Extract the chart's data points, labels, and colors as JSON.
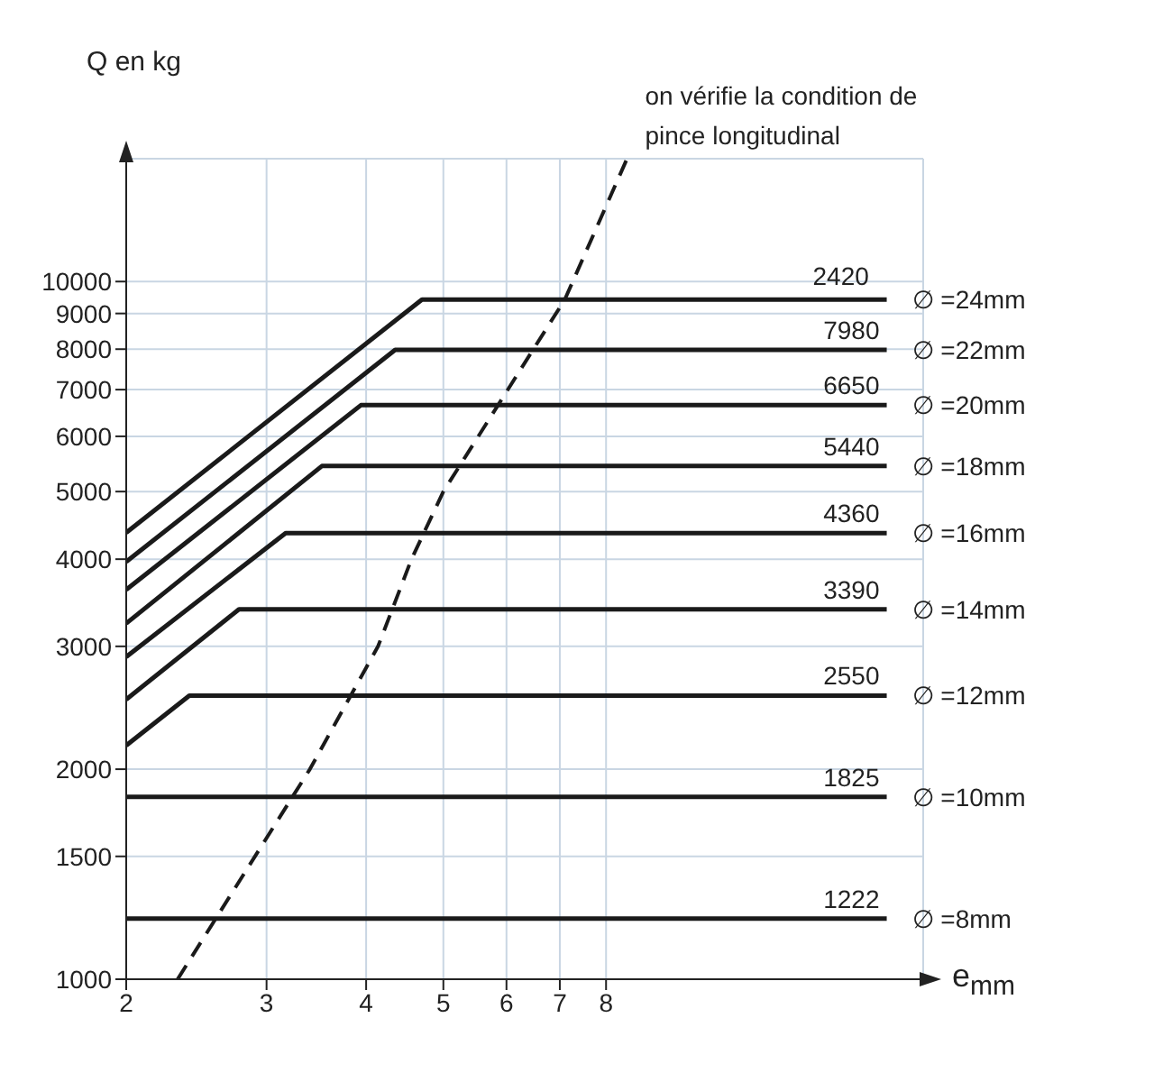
{
  "chart_data": {
    "type": "line",
    "ylabel": "Q en kg",
    "xlabel": "e$_{mm}$",
    "log": "xy",
    "grid": true,
    "marker": "none",
    "xlim": [
      2,
      20
    ],
    "xticks": [
      2,
      3,
      4,
      5,
      6,
      7,
      8
    ],
    "ylim": [
      1000,
      15000
    ],
    "yticks": [
      1000,
      1500,
      2000,
      3000,
      4000,
      5000,
      6000,
      7000,
      8000,
      9000,
      10000
    ],
    "annotations": [
      {
        "text": "on vérifie la condition de pince longitudinal",
        "x": 8.5,
        "y": 15000
      },
      {
        "text": "2420",
        "x": 13.8,
        "y": 9420
      }
    ],
    "series": [
      {
        "name": "∅ =24mm",
        "color": "#1a1a1a",
        "x": [
          2,
          4.7,
          18
        ],
        "values": [
          4366,
          9420,
          9420
        ]
      },
      {
        "name": "∅ =22mm",
        "color": "#1a1a1a",
        "x": [
          2,
          4.35,
          18
        ],
        "values": [
          3966,
          7980,
          7980
        ],
        "value_labels": [
          null,
          null,
          "7980"
        ]
      },
      {
        "name": "∅ =20mm",
        "color": "#1a1a1a",
        "x": [
          2,
          3.94,
          18
        ],
        "values": [
          3617,
          6650,
          6650
        ],
        "value_labels": [
          null,
          null,
          "6650"
        ]
      },
      {
        "name": "∅ =18mm",
        "color": "#1a1a1a",
        "x": [
          2,
          3.52,
          18
        ],
        "values": [
          3236,
          5440,
          5440
        ],
        "value_labels": [
          null,
          null,
          "5440"
        ]
      },
      {
        "name": "∅ =16mm",
        "color": "#1a1a1a",
        "x": [
          2,
          3.17,
          18
        ],
        "values": [
          2898,
          4360,
          4360
        ],
        "value_labels": [
          null,
          null,
          "4360"
        ]
      },
      {
        "name": "∅ =14mm",
        "color": "#1a1a1a",
        "x": [
          2,
          2.77,
          18
        ],
        "values": [
          2518,
          3390,
          3390
        ],
        "value_labels": [
          null,
          null,
          "3390"
        ]
      },
      {
        "name": "∅ =12mm",
        "color": "#1a1a1a",
        "x": [
          2,
          2.4,
          18
        ],
        "values": [
          2163,
          2550,
          2550
        ],
        "value_labels": [
          null,
          null,
          "2550"
        ]
      },
      {
        "name": "∅ =10mm",
        "color": "#1a1a1a",
        "x": [
          2,
          18
        ],
        "values": [
          1825,
          1825
        ],
        "value_labels": [
          null,
          "1825"
        ]
      },
      {
        "name": "∅ =8mm",
        "color": "#1a1a1a",
        "x": [
          2,
          18
        ],
        "values": [
          1222,
          1222
        ],
        "value_labels": [
          null,
          "1222"
        ]
      },
      {
        "color": "#1a1a1a",
        "line_style": "dashed",
        "x": [
          2.32,
          3.4,
          4.14,
          4.56,
          5.0,
          7.1,
          8.5
        ],
        "values": [
          1000,
          2000,
          3000,
          4000,
          5000,
          9420,
          15000
        ]
      }
    ]
  }
}
